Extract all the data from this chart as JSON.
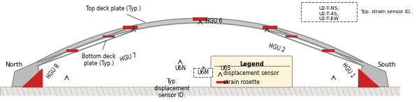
{
  "fig_width": 6.0,
  "fig_height": 1.47,
  "dpi": 100,
  "bg_color": "#ffffff",
  "bridge_color": "#c8c8c8",
  "bridge_edge": "#888888",
  "abutment_fill": "#bbbbbb",
  "red_fill": "#cc2222",
  "legend_bg": "#fdf5dc",
  "north_label": "North",
  "south_label": "South",
  "top_deck_label": "Top deck plate (Typ.)",
  "bottom_deck_label": "Bottom deck\nplate (Typ.)",
  "typ_disp_label": "Typ.\ndisplacement\nsensor ID.",
  "typ_strain_label": "Typ. strain sensor ID.",
  "hgu8": "HGU 8",
  "hgu7": "HGU 7",
  "hgu6": "HGU 6",
  "hgu2": "HGU 2",
  "hgu1": "HGU 1",
  "u6n": "U6N",
  "u6m": "U6M",
  "u6s": "U6S",
  "u2_ns": "U2-T-NS,",
  "u2_45": "U2-T-4S,",
  "u2_ew": "U2-T-EW",
  "legend_title": "Legend",
  "legend_disp": "displacement sensor",
  "legend_strain": "strain rosette"
}
